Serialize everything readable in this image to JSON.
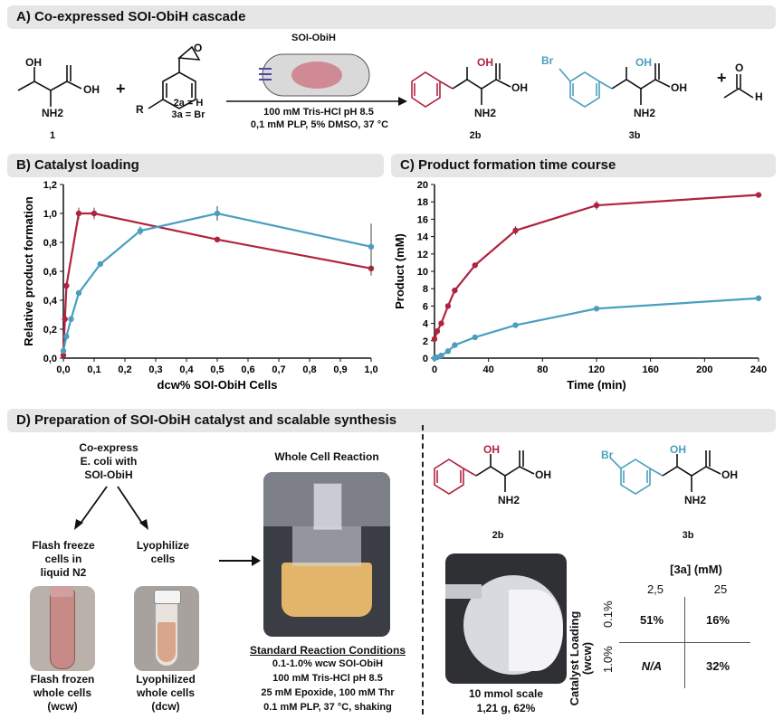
{
  "panels": {
    "a": "A) Co-expressed SOI-ObiH cascade",
    "b": "B) Catalyst loading",
    "c": "C) Product formation time course",
    "d": "D) Preparation of SOI-ObiH catalyst and scalable synthesis"
  },
  "scheme_a": {
    "enzyme": "SOI-ObiH",
    "cond1": "100 mM Tris-HCl pH 8.5",
    "cond2": "0,1 mM PLP, 5% DMSO, 37 °C",
    "sub_labels": "2a = H\n3a = Br",
    "label_1": "1",
    "label_2b": "2b",
    "label_3b": "3b",
    "plus": "+",
    "atoms": {
      "oh": "OH",
      "nh2": "NH2",
      "r": "R",
      "br": "Br",
      "h": "H",
      "o": "O"
    }
  },
  "colors": {
    "red": "#b0233f",
    "blue": "#4a9fbe"
  },
  "chart_data": [
    {
      "type": "line",
      "title": "",
      "xlabel": "dcw% SOI-ObiH Cells",
      "ylabel": "Relative product formation",
      "xlim": [
        0,
        1.0
      ],
      "ylim": [
        0,
        1.2
      ],
      "xticks": [
        "0,0",
        "0,1",
        "0,2",
        "0,3",
        "0,4",
        "0,5",
        "0,6",
        "0,7",
        "0,8",
        "0,9",
        "1,0"
      ],
      "yticks": [
        "0,0",
        "0,2",
        "0,4",
        "0,6",
        "0,8",
        "1,0",
        "1,2"
      ],
      "series": [
        {
          "color": "red",
          "x": [
            0,
            0.005,
            0.01,
            0.05,
            0.1,
            0.5,
            1.0
          ],
          "y": [
            0.02,
            0.27,
            0.5,
            1.0,
            1.0,
            0.82,
            0.62
          ],
          "err": [
            0.01,
            0.02,
            0.02,
            0.04,
            0.04,
            0.01,
            0.05
          ]
        },
        {
          "color": "blue",
          "x": [
            0,
            0.01,
            0.025,
            0.05,
            0.12,
            0.25,
            0.5,
            1.0
          ],
          "y": [
            0.05,
            0.15,
            0.27,
            0.45,
            0.65,
            0.88,
            1.0,
            0.77
          ],
          "err": [
            0.01,
            0.01,
            0.01,
            0.01,
            0.01,
            0.03,
            0.05,
            0.16
          ]
        }
      ]
    },
    {
      "type": "line",
      "title": "",
      "xlabel": "Time (min)",
      "ylabel": "Product (mM)",
      "xlim": [
        0,
        240
      ],
      "ylim": [
        0,
        20
      ],
      "xticks": [
        "0",
        "40",
        "80",
        "120",
        "160",
        "200",
        "240"
      ],
      "yticks": [
        "0",
        "2",
        "4",
        "6",
        "8",
        "10",
        "12",
        "14",
        "16",
        "18",
        "20"
      ],
      "series": [
        {
          "color": "red",
          "x": [
            0,
            2,
            5,
            10,
            15,
            30,
            60,
            120,
            240
          ],
          "y": [
            2.2,
            3.1,
            4.0,
            6.0,
            7.8,
            10.7,
            14.7,
            17.6,
            18.8
          ],
          "err": [
            0.1,
            0.1,
            0.1,
            0.3,
            0.2,
            0.3,
            0.5,
            0.5,
            0.2
          ]
        },
        {
          "color": "blue",
          "x": [
            0,
            2,
            5,
            10,
            15,
            30,
            60,
            120,
            240
          ],
          "y": [
            0.0,
            0.1,
            0.3,
            0.8,
            1.5,
            2.4,
            3.8,
            5.7,
            6.9
          ],
          "err": [
            0.05,
            0.05,
            0.05,
            0.1,
            0.1,
            0.1,
            0.1,
            0.1,
            0.1
          ]
        }
      ]
    }
  ],
  "panel_d": {
    "coexpress": "Co-express\nE. coli with\nSOI-ObiH",
    "flash": "Flash freeze\ncells in\nliquid N2",
    "lyoph": "Lyophilize\ncells",
    "flash_label": "Flash frozen\nwhole cells\n(wcw)",
    "lyoph_label": "Lyophilized\nwhole cells\n(dcw)",
    "whole_cell": "Whole Cell Reaction",
    "std_title": "Standard Reaction Conditions",
    "std1": "0.1-1.0% wcw SOI-ObiH",
    "std2": "100 mM Tris-HCl pH 8.5",
    "std3": "25 mM Epoxide, 100 mM Thr",
    "std4": "0.1 mM PLP, 37 °C, shaking",
    "scale1": "10 mmol scale",
    "scale2": "1,21 g, 62%",
    "label_2b": "2b",
    "label_3b": "3b",
    "table_title": "[3a] (mM)",
    "cols": [
      "2,5",
      "25"
    ],
    "rows": [
      "0.1%",
      "1.0%"
    ],
    "row_axis": "Catalyst Loading\n(wcw)",
    "cells": [
      [
        "51%",
        "16%"
      ],
      [
        "N/A",
        "32%"
      ]
    ]
  }
}
